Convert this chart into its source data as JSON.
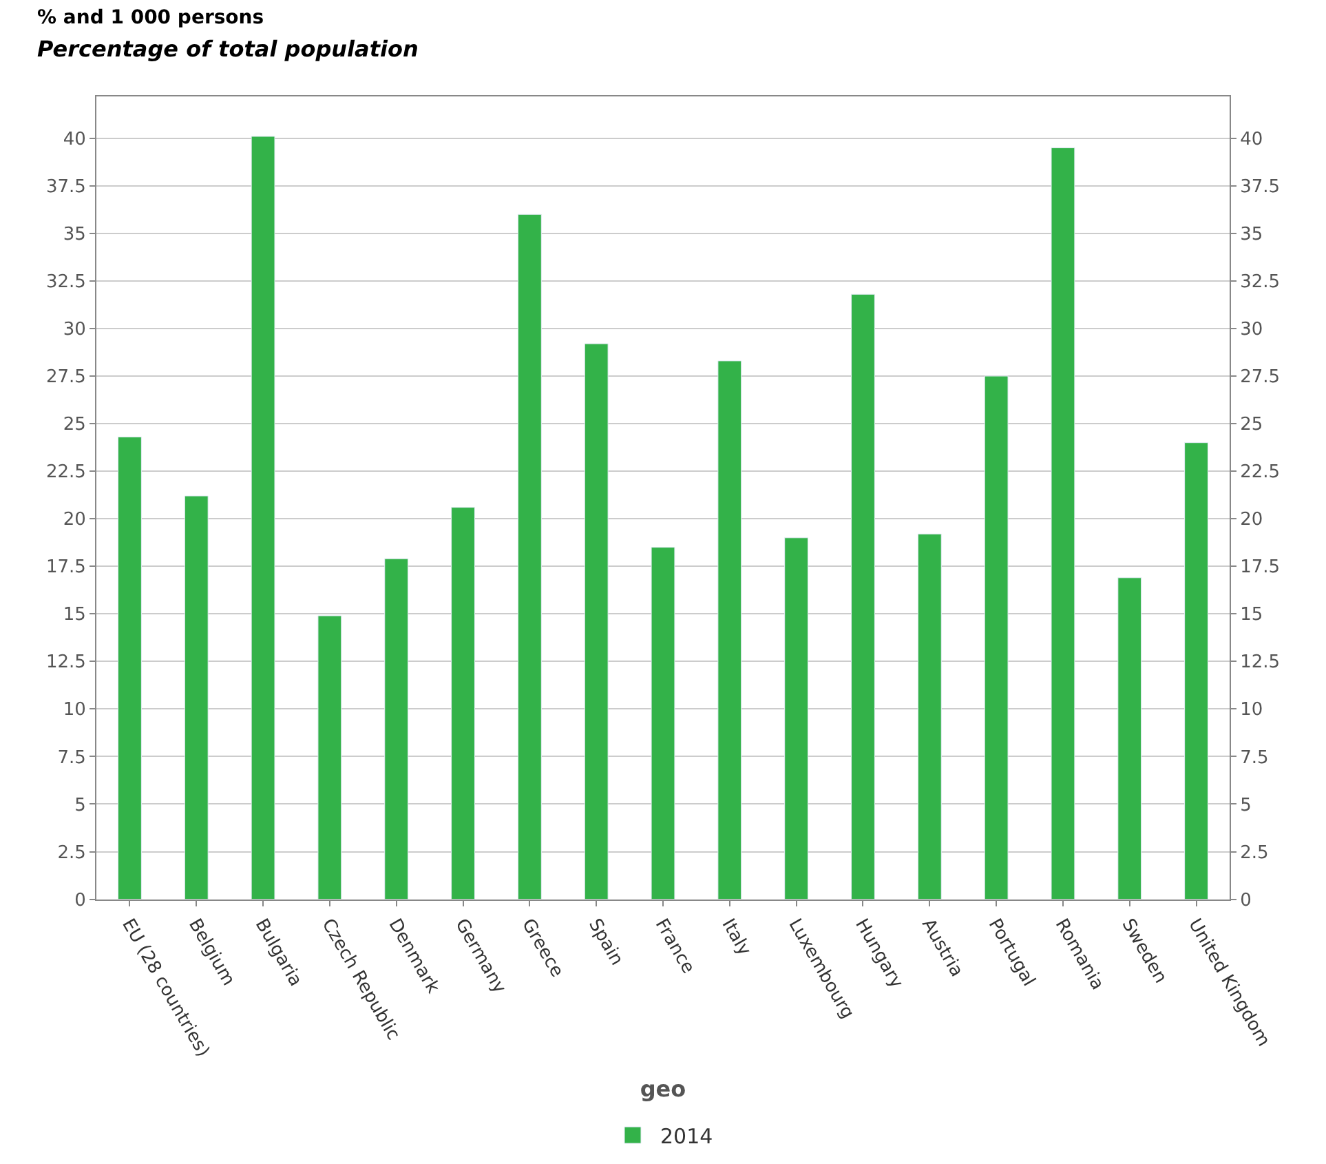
{
  "chart_data": {
    "type": "bar",
    "title": "% and 1 000 persons",
    "subtitle": "Percentage of total population",
    "xlabel": "geo",
    "categories": [
      "EU (28 countries)",
      "Belgium",
      "Bulgaria",
      "Czech Republic",
      "Denmark",
      "Germany",
      "Greece",
      "Spain",
      "France",
      "Italy",
      "Luxembourg",
      "Hungary",
      "Austria",
      "Portugal",
      "Romania",
      "Sweden",
      "United Kingdom"
    ],
    "series": [
      {
        "name": "2014",
        "color": "#33b249",
        "values": [
          24.3,
          21.2,
          40.1,
          14.9,
          17.9,
          20.6,
          36.0,
          29.2,
          18.5,
          28.3,
          19.0,
          31.8,
          19.2,
          27.5,
          39.5,
          16.9,
          24.0
        ]
      }
    ],
    "ylim": [
      0,
      42.2
    ],
    "yticks": [
      0,
      2.5,
      5,
      7.5,
      10,
      12.5,
      15,
      17.5,
      20,
      22.5,
      25,
      27.5,
      30,
      32.5,
      35,
      37.5,
      40
    ],
    "y2lim": [
      0,
      42.2
    ],
    "y2ticks": [
      0,
      2.5,
      5,
      7.5,
      10,
      12.5,
      15,
      17.5,
      20,
      22.5,
      25,
      27.5,
      30,
      32.5,
      35,
      37.5,
      40
    ],
    "grid": "y",
    "legend": "bottom"
  }
}
